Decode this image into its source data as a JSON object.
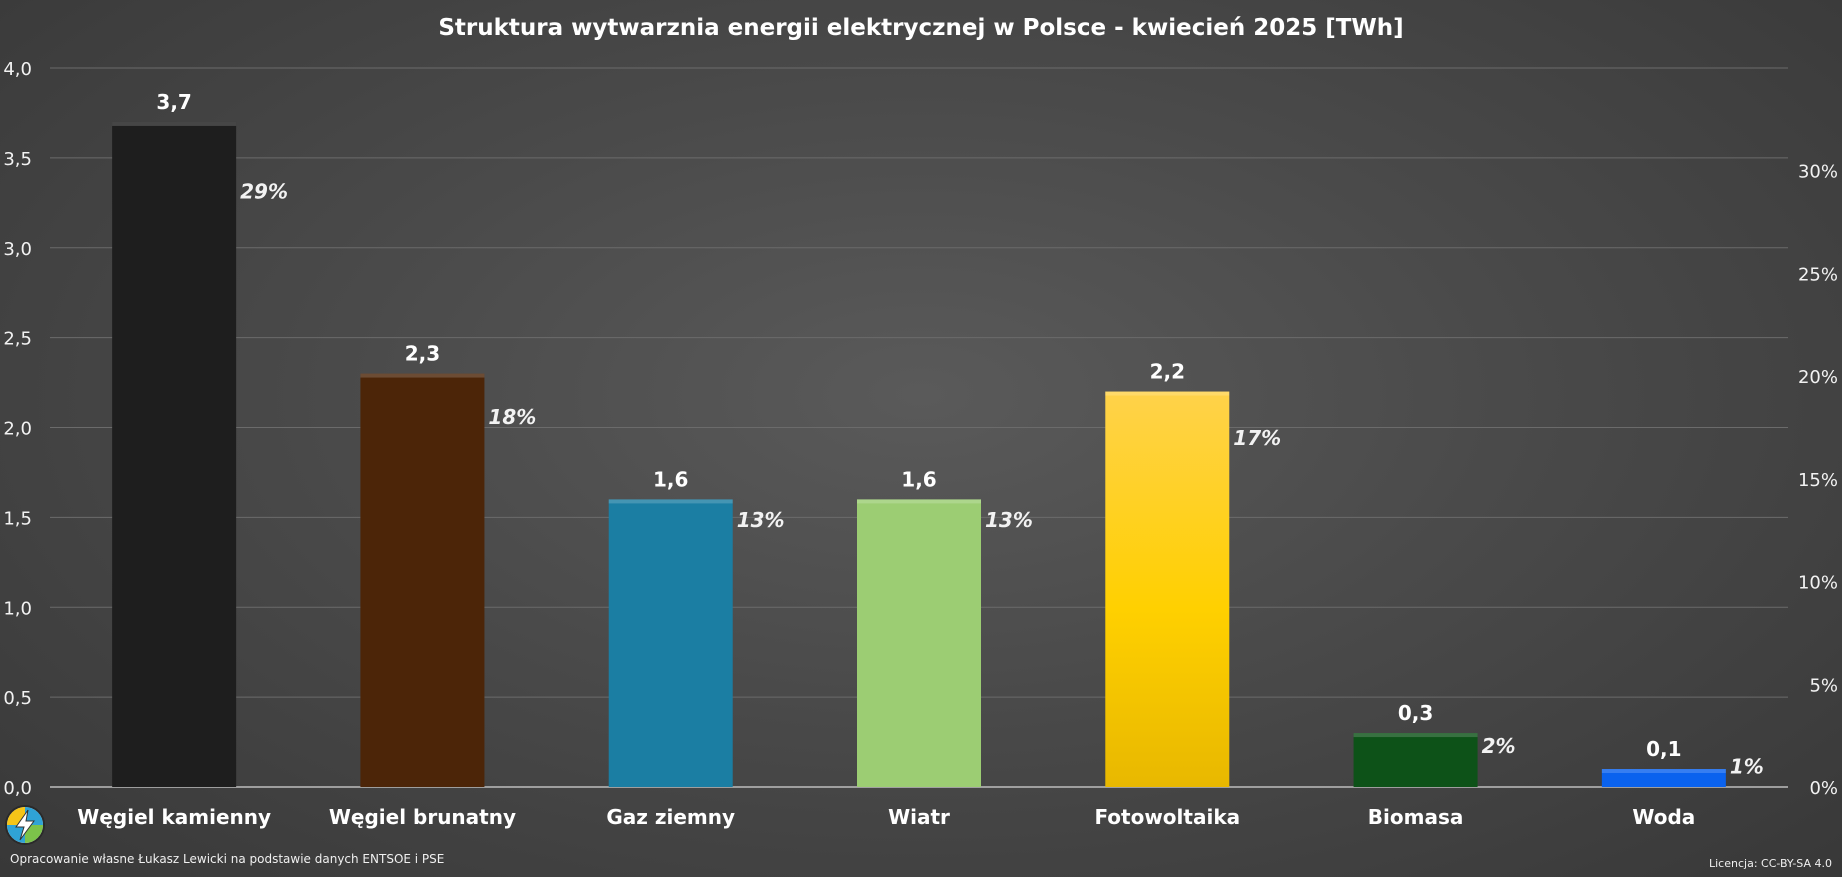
{
  "chart_data": {
    "type": "bar",
    "title": "Struktura wytwarznia energii elektrycznej w Polsce - kwiecień 2025 [TWh]",
    "categories": [
      "Węgiel kamienny",
      "Węgiel brunatny",
      "Gaz ziemny",
      "Wiatr",
      "Fotowoltaika",
      "Biomasa",
      "Woda"
    ],
    "values": [
      3.7,
      2.3,
      1.6,
      1.6,
      2.2,
      0.3,
      0.1
    ],
    "value_labels": [
      "3,7",
      "2,3",
      "1,6",
      "1,6",
      "2,2",
      "0,3",
      "0,1"
    ],
    "shares": [
      29,
      18,
      13,
      13,
      17,
      2,
      1
    ],
    "share_labels": [
      "29%",
      "18%",
      "13%",
      "13%",
      "17%",
      "2%",
      "1%"
    ],
    "colors": [
      "#1e1e1e",
      "#4c2508",
      "#1b7ea3",
      "#9ccd73",
      "#ffcf1a",
      "#0d5218",
      "#0a62ee"
    ],
    "ylim": [
      0,
      4.0
    ],
    "yticks": [
      "0,0",
      "0,5",
      "1,0",
      "1,5",
      "2,0",
      "2,5",
      "3,0",
      "3,5",
      "4,0"
    ],
    "y2lim": [
      0,
      35
    ],
    "y2ticks": [
      "0%",
      "5%",
      "10%",
      "15%",
      "20%",
      "25%",
      "30%"
    ],
    "grid": true
  },
  "footer": {
    "source": "Opracowanie własne Łukasz Lewicki na podstawie danych ENTSOE i PSE",
    "license": "Licencja: CC-BY-SA 4.0"
  },
  "logo_icon": "lightning-logo-icon"
}
